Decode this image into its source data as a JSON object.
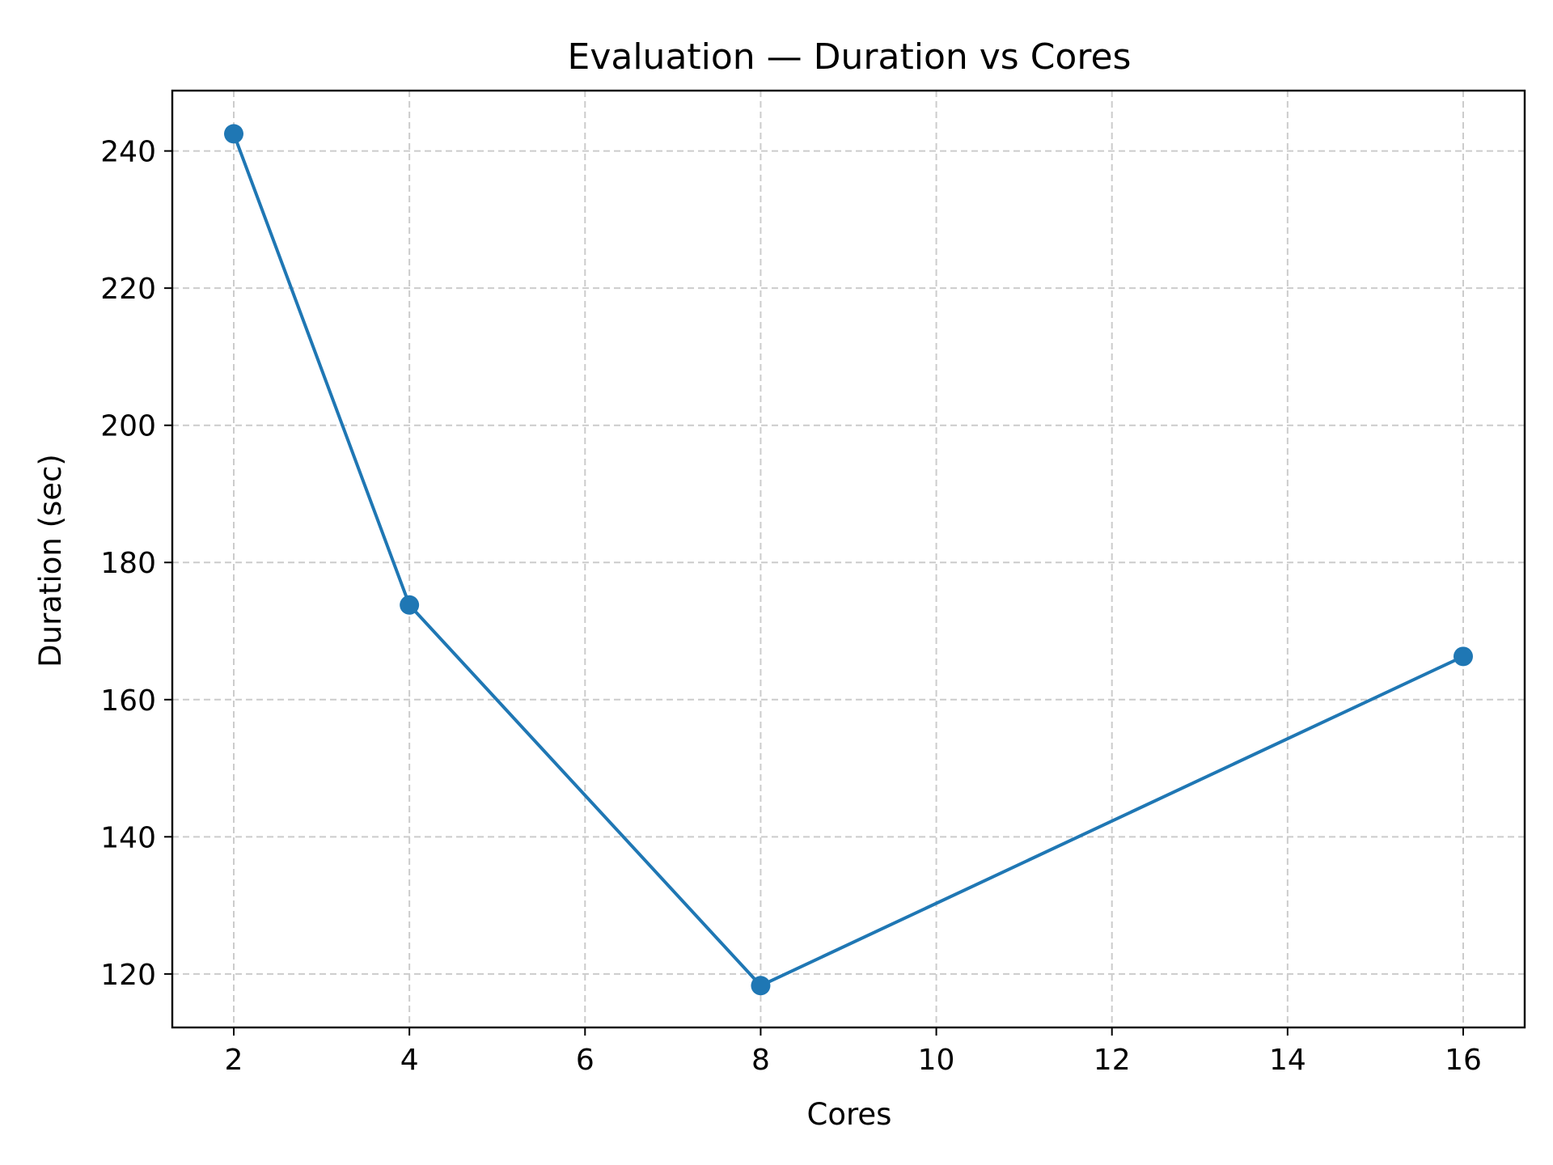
{
  "chart_data": {
    "type": "line",
    "title": "Evaluation — Duration vs Cores",
    "xlabel": "Cores",
    "ylabel": "Duration (sec)",
    "xlim": [
      1.3,
      16.7
    ],
    "ylim": [
      112.2,
      248.8
    ],
    "xticks": [
      2,
      4,
      6,
      8,
      10,
      12,
      14,
      16
    ],
    "yticks": [
      120,
      140,
      160,
      180,
      200,
      220,
      240
    ],
    "grid": true,
    "grid_style": "dashed",
    "series": [
      {
        "color": "#1f77b4",
        "marker": "circle",
        "x": [
          2,
          4,
          8,
          16
        ],
        "y": [
          242.5,
          173.8,
          118.3,
          166.3
        ]
      }
    ]
  }
}
